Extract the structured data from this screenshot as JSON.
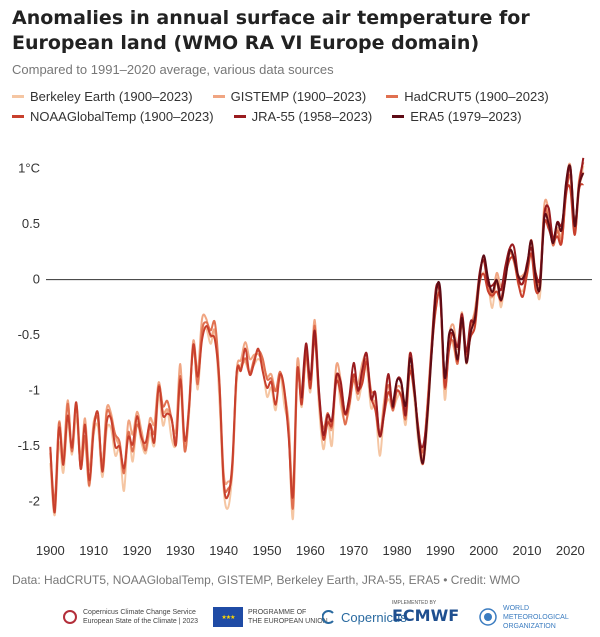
{
  "header": {
    "title": "Anomalies in annual surface air temperature for European land (WMO RA VI Europe domain)",
    "subtitle": "Compared to 1991–2020 average, various data sources"
  },
  "legend": {
    "row1": [
      {
        "label": "Berkeley Earth (1900–2023)",
        "color": "#f5c6a3"
      },
      {
        "label": "GISTEMP (1900–2023)",
        "color": "#f0a582"
      },
      {
        "label": "HadCRUT5 (1900–2023)",
        "color": "#e07050"
      }
    ],
    "row2": [
      {
        "label": "NOAAGlobalTemp (1900–2023)",
        "color": "#c8402d"
      },
      {
        "label": "JRA-55 (1958–2023)",
        "color": "#9a1c1f"
      },
      {
        "label": "ERA5 (1979–2023)",
        "color": "#5e0b15"
      }
    ]
  },
  "credit": "Data: HadCRUT5, NOAAGlobalTemp, GISTEMP, Berkeley Earth, JRA-55, ERA5 • Credit: WMO",
  "logos": {
    "c3s_line1": "Copernicus Climate Change Service",
    "c3s_line2": "European State of the Climate | 2023",
    "eu_line1": "PROGRAMME OF",
    "eu_line2": "THE EUROPEAN UNION",
    "copernicus": "Copernicus",
    "ecmwf_small": "IMPLEMENTED BY",
    "ecmwf": "ECMWF",
    "wmo_line1": "WORLD",
    "wmo_line2": "METEOROLOGICAL",
    "wmo_line3": "ORGANIZATION"
  },
  "chart_data": {
    "type": "line",
    "title": "Anomalies in annual surface air temperature for European land (WMO RA VI Europe domain)",
    "subtitle": "Compared to 1991–2020 average, various data sources",
    "xlabel": "",
    "ylabel": "",
    "y_unit": "°C",
    "xlim": [
      1899,
      2025
    ],
    "ylim": [
      -2.3,
      1.15
    ],
    "x_ticks": [
      1900,
      1910,
      1920,
      1930,
      1940,
      1950,
      1960,
      1970,
      1980,
      1990,
      2000,
      2010,
      2020
    ],
    "y_ticks": [
      {
        "value": 1,
        "label": "1°C"
      },
      {
        "value": 0.5,
        "label": "0.5"
      },
      {
        "value": 0,
        "label": "0"
      },
      {
        "value": -0.5,
        "label": "-0.5"
      },
      {
        "value": -1,
        "label": "-1"
      },
      {
        "value": -1.5,
        "label": "-1.5"
      },
      {
        "value": -2,
        "label": "-2"
      }
    ],
    "grid": false,
    "zero_line": true,
    "legend_position": "top",
    "base_series": {
      "x_start": 1900,
      "values": [
        -1.55,
        -2.05,
        -1.35,
        -1.7,
        -1.15,
        -1.55,
        -1.1,
        -1.65,
        -1.35,
        -1.8,
        -1.3,
        -1.25,
        -1.7,
        -1.25,
        -1.3,
        -1.45,
        -1.5,
        -1.75,
        -1.35,
        -1.5,
        -1.25,
        -1.35,
        -1.5,
        -1.3,
        -1.4,
        -1.0,
        -1.2,
        -1.15,
        -1.3,
        -1.45,
        -0.85,
        -1.5,
        -1.1,
        -0.55,
        -0.9,
        -0.45,
        -0.4,
        -0.5,
        -0.45,
        -0.95,
        -1.85,
        -1.9,
        -1.7,
        -0.8,
        -0.75,
        -0.65,
        -0.8,
        -0.7,
        -0.65,
        -0.75,
        -0.95,
        -0.95,
        -1.05,
        -0.85,
        -1.0,
        -1.35,
        -2.0,
        -0.8,
        -1.05,
        -0.65,
        -0.95,
        -0.45,
        -1.1,
        -1.4,
        -1.25,
        -1.35,
        -0.85,
        -1.0,
        -1.25,
        -1.05,
        -0.85,
        -1.0,
        -0.85,
        -0.75,
        -1.05,
        -1.1,
        -1.45,
        -1.2,
        -0.95,
        -1.15,
        -0.95,
        -1.0,
        -1.2,
        -0.75,
        -1.0,
        -1.4,
        -1.6,
        -1.2,
        -0.65,
        -0.15,
        -0.15,
        -0.95,
        -0.55,
        -0.5,
        -0.7,
        -0.3,
        -0.7,
        -0.45,
        -0.35,
        -0.05,
        0.15,
        -0.05,
        -0.15,
        0.0,
        -0.15,
        0.05,
        0.3,
        0.2,
        0.0,
        -0.05,
        0.05,
        0.3,
        0.0,
        -0.05,
        0.6,
        0.55,
        0.35,
        0.5,
        0.4,
        0.8,
        0.95,
        0.45,
        0.85,
        1.0
      ]
    },
    "series": [
      {
        "name": "Berkeley Earth (1900–2023)",
        "x_start": 1900,
        "offset": -0.04,
        "amp": 1.03
      },
      {
        "name": "GISTEMP (1900–2023)",
        "x_start": 1900,
        "offset": 0.03,
        "amp": 0.99
      },
      {
        "name": "HadCRUT5 (1900–2023)",
        "x_start": 1900,
        "offset": 0.0,
        "amp": 1.0
      },
      {
        "name": "NOAAGlobalTemp (1900–2023)",
        "x_start": 1900,
        "offset": -0.05,
        "amp": 0.97
      },
      {
        "name": "JRA-55 (1958–2023)",
        "x_start": 1958,
        "offset": 0.04,
        "amp": 1.0
      },
      {
        "name": "ERA5 (1979–2023)",
        "x_start": 1979,
        "offset": 0.01,
        "amp": 1.0
      }
    ]
  }
}
